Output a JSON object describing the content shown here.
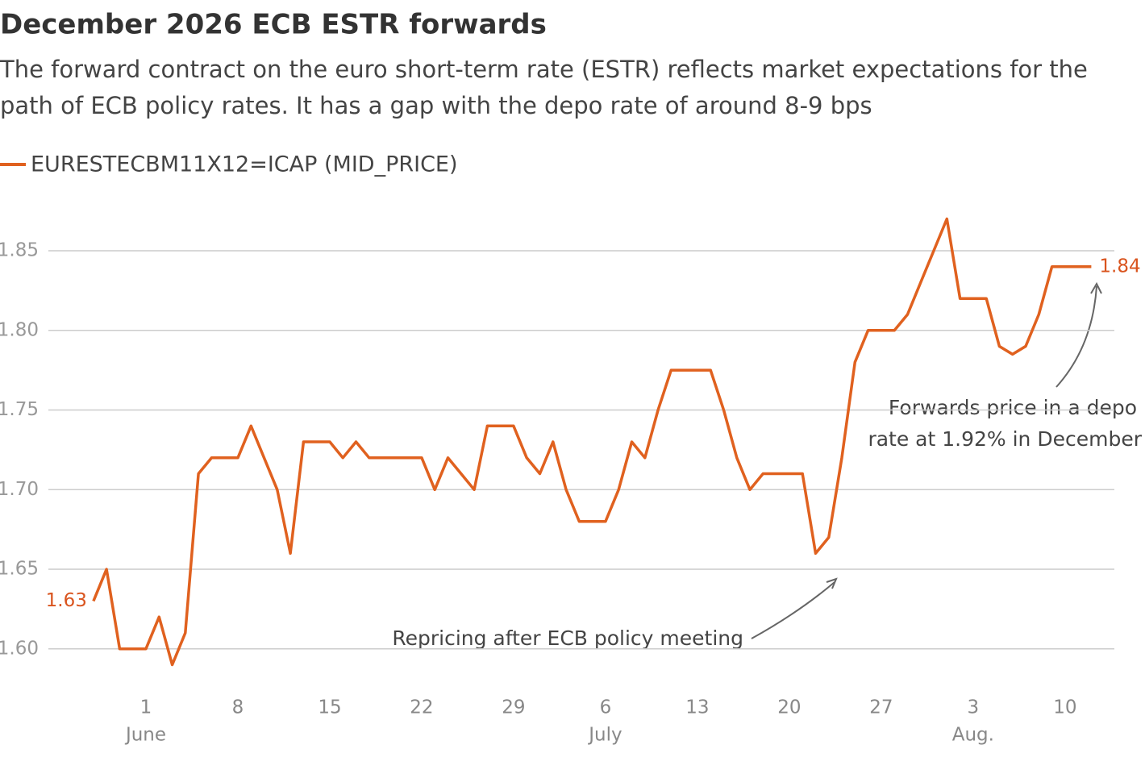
{
  "chart_data": {
    "type": "line",
    "title": "December 2026 ECB ESTR forwards",
    "subtitle": [
      "The forward contract on the euro short-term rate (ESTR) reflects market expectations for the",
      "path of ECB policy rates. It has a gap with the depo rate of around 8-9 bps"
    ],
    "x": [
      "05-28",
      "05-29",
      "05-30",
      "05-31",
      "06-01",
      "06-02",
      "06-03",
      "06-04",
      "06-05",
      "06-06",
      "06-07",
      "06-08",
      "06-09",
      "06-10",
      "06-11",
      "06-12",
      "06-13",
      "06-14",
      "06-15",
      "06-16",
      "06-17",
      "06-18",
      "06-19",
      "06-20",
      "06-21",
      "06-22",
      "06-23",
      "06-24",
      "06-25",
      "06-26",
      "06-27",
      "06-28",
      "06-29",
      "06-30",
      "07-01",
      "07-02",
      "07-03",
      "07-04",
      "07-05",
      "07-06",
      "07-07",
      "07-08",
      "07-09",
      "07-10",
      "07-11",
      "07-12",
      "07-13",
      "07-14",
      "07-15",
      "07-16",
      "07-17",
      "07-18",
      "07-19",
      "07-20",
      "07-21",
      "07-22",
      "07-23",
      "07-24",
      "07-25",
      "07-26",
      "07-27",
      "07-28",
      "07-29",
      "07-30",
      "07-31",
      "08-01",
      "08-02",
      "08-03",
      "08-04",
      "08-05",
      "08-06",
      "08-07",
      "08-08",
      "08-09",
      "08-10",
      "08-11",
      "08-12"
    ],
    "series": [
      {
        "name": "EURESTECBM11X12=ICAP (MID_PRICE)",
        "color": "#e0611f",
        "values": [
          1.63,
          1.65,
          1.6,
          1.6,
          1.6,
          1.62,
          1.59,
          1.61,
          1.71,
          1.72,
          1.72,
          1.72,
          1.74,
          1.72,
          1.7,
          1.66,
          1.73,
          1.73,
          1.73,
          1.72,
          1.73,
          1.72,
          1.72,
          1.72,
          1.72,
          1.72,
          1.7,
          1.72,
          1.71,
          1.7,
          1.74,
          1.74,
          1.74,
          1.72,
          1.71,
          1.73,
          1.7,
          1.68,
          1.68,
          1.68,
          1.7,
          1.73,
          1.72,
          1.75,
          1.775,
          1.775,
          1.775,
          1.775,
          1.75,
          1.72,
          1.7,
          1.71,
          1.71,
          1.71,
          1.71,
          1.66,
          1.67,
          1.72,
          1.78,
          1.8,
          1.8,
          1.8,
          1.81,
          1.83,
          1.85,
          1.87,
          1.82,
          1.82,
          1.82,
          1.79,
          1.785,
          1.79,
          1.81,
          1.84,
          1.84,
          1.84,
          1.84
        ]
      }
    ],
    "xlim": [
      "05-25",
      "08-14"
    ],
    "xticks": [
      {
        "value": "06-01",
        "label": "1"
      },
      {
        "value": "06-08",
        "label": "8"
      },
      {
        "value": "06-15",
        "label": "15"
      },
      {
        "value": "06-22",
        "label": "22"
      },
      {
        "value": "06-29",
        "label": "29"
      },
      {
        "value": "07-06",
        "label": "6"
      },
      {
        "value": "07-13",
        "label": "13"
      },
      {
        "value": "07-20",
        "label": "20"
      },
      {
        "value": "07-27",
        "label": "27"
      },
      {
        "value": "08-03",
        "label": "3"
      },
      {
        "value": "08-10",
        "label": "10"
      }
    ],
    "month_ticks": [
      {
        "value": "06-01",
        "label": "June"
      },
      {
        "value": "07-06",
        "label": "July"
      },
      {
        "value": "08-03",
        "label": "Aug."
      }
    ],
    "ylim": [
      1.57,
      1.89
    ],
    "yticks": [
      {
        "value": 1.6,
        "label": "1.60"
      },
      1.65,
      {
        "value": 1.7,
        "label": "1.70"
      },
      1.75,
      {
        "value": 1.8,
        "label": "1.80"
      },
      1.85
    ],
    "grid": true,
    "annotations": [
      {
        "text": [
          "Repricing after ECB policy meeting"
        ]
      },
      {
        "text": [
          "Forwards price in a depo",
          "rate at 1.92% in December"
        ]
      }
    ]
  }
}
